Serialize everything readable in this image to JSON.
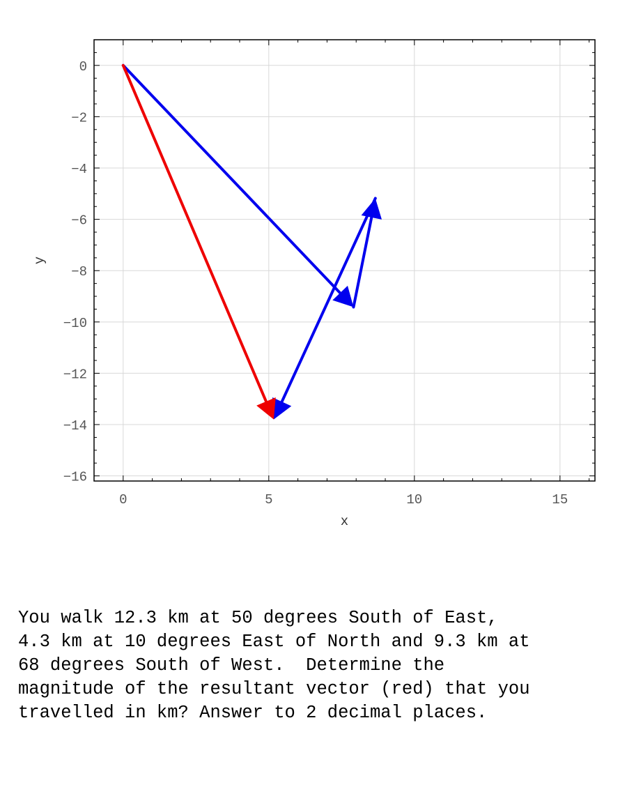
{
  "chart_data": {
    "type": "line",
    "title": "",
    "xlabel": "x",
    "ylabel": "y",
    "xlim": [
      -1,
      16.2
    ],
    "ylim": [
      -16.2,
      1
    ],
    "xticks": [
      0,
      5,
      10,
      15
    ],
    "yticks": [
      0,
      -2,
      -4,
      -6,
      -8,
      -10,
      -12,
      -14,
      -16
    ],
    "grid": true,
    "legend": "none",
    "series": [
      {
        "color": "#0000ee",
        "values": [
          [
            0,
            0
          ],
          [
            7.91,
            -9.42
          ]
        ]
      },
      {
        "color": "#0000ee",
        "values": [
          [
            7.91,
            -9.42
          ],
          [
            8.66,
            -5.18
          ]
        ]
      },
      {
        "color": "#0000ee",
        "values": [
          [
            8.66,
            -5.18
          ],
          [
            5.17,
            -13.8
          ]
        ]
      },
      {
        "color": "#ee0000",
        "values": [
          [
            0,
            0
          ],
          [
            5.17,
            -13.8
          ]
        ]
      }
    ]
  },
  "question": {
    "lines": [
      "You walk 12.3 km at 50 degrees South of East,",
      "4.3 km at 10 degrees East of North and 9.3 km at",
      "68 degrees South of West.  Determine the",
      "magnitude of the resultant vector (red) that you",
      "travelled in km? Answer to 2 decimal places."
    ]
  }
}
